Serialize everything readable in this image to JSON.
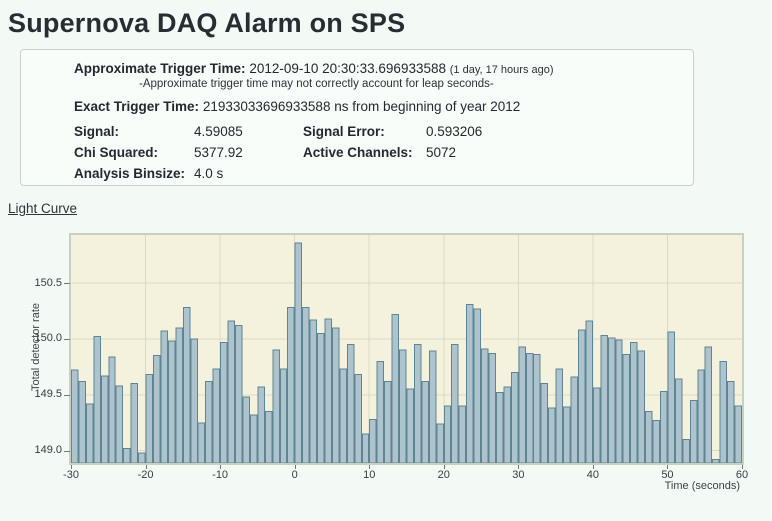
{
  "page": {
    "title": "Supernova DAQ Alarm on SPS"
  },
  "alarm_info": {
    "approx_trigger_label": "Approximate Trigger Time:",
    "approx_trigger_value": "2012-09-10 20:30:33.696933588",
    "approx_trigger_ago": "(1 day, 17 hours ago)",
    "leap_note": "-Approximate trigger time may not correctly account for leap seconds-",
    "exact_trigger_label": "Exact Trigger Time:",
    "exact_trigger_value": "21933033696933588 ns from beginning of year 2012",
    "stats": {
      "signal_label": "Signal:",
      "signal_value": "4.59085",
      "signal_error_label": "Signal Error:",
      "signal_error_value": "0.593206",
      "chi_squared_label": "Chi Squared:",
      "chi_squared_value": "5377.92",
      "active_channels_label": "Active Channels:",
      "active_channels_value": "5072",
      "analysis_binsize_label": "Analysis Binsize:",
      "analysis_binsize_value": "4.0 s"
    }
  },
  "light_curve_link": "Light Curve",
  "chart_data": {
    "type": "bar",
    "title": "",
    "xlabel": "Time (seconds)",
    "ylabel": "Total detector rate",
    "xlim": [
      -30,
      60
    ],
    "ylim": [
      148.89,
      150.93
    ],
    "x_start": -30,
    "bin_width": 1,
    "xticks": [
      -30,
      -20,
      -10,
      0,
      10,
      20,
      30,
      40,
      50,
      60
    ],
    "yticks": [
      149.0,
      149.5,
      150.0,
      150.5
    ],
    "grid": true,
    "values": [
      149.72,
      149.62,
      149.42,
      150.02,
      149.67,
      149.84,
      149.58,
      149.02,
      149.6,
      148.98,
      149.68,
      149.85,
      150.07,
      149.98,
      150.1,
      150.28,
      150.0,
      149.25,
      149.62,
      149.73,
      149.97,
      150.16,
      150.12,
      149.48,
      149.32,
      149.57,
      149.35,
      149.9,
      149.73,
      150.28,
      150.86,
      150.28,
      150.17,
      150.05,
      150.18,
      150.1,
      149.73,
      149.95,
      149.68,
      149.15,
      149.28,
      149.8,
      149.62,
      150.22,
      149.9,
      149.55,
      149.95,
      149.62,
      149.89,
      149.24,
      149.4,
      149.95,
      149.4,
      150.31,
      150.27,
      149.91,
      149.87,
      149.52,
      149.57,
      149.7,
      149.93,
      149.87,
      149.86,
      149.6,
      149.38,
      149.73,
      149.39,
      149.66,
      150.08,
      150.16,
      149.56,
      150.03,
      150.01,
      149.99,
      149.86,
      149.97,
      149.89,
      149.35,
      149.27,
      149.53,
      150.06,
      149.64,
      149.1,
      149.45,
      149.72,
      149.93,
      148.92,
      149.8,
      149.62,
      149.4
    ],
    "colors": {
      "bar_fill": "#adc3cd",
      "bar_stroke": "#5f8593",
      "plot_bg": "#f4f2dc",
      "grid_line": "#d9d9c8",
      "plot_border": "#c8d0bf"
    }
  }
}
